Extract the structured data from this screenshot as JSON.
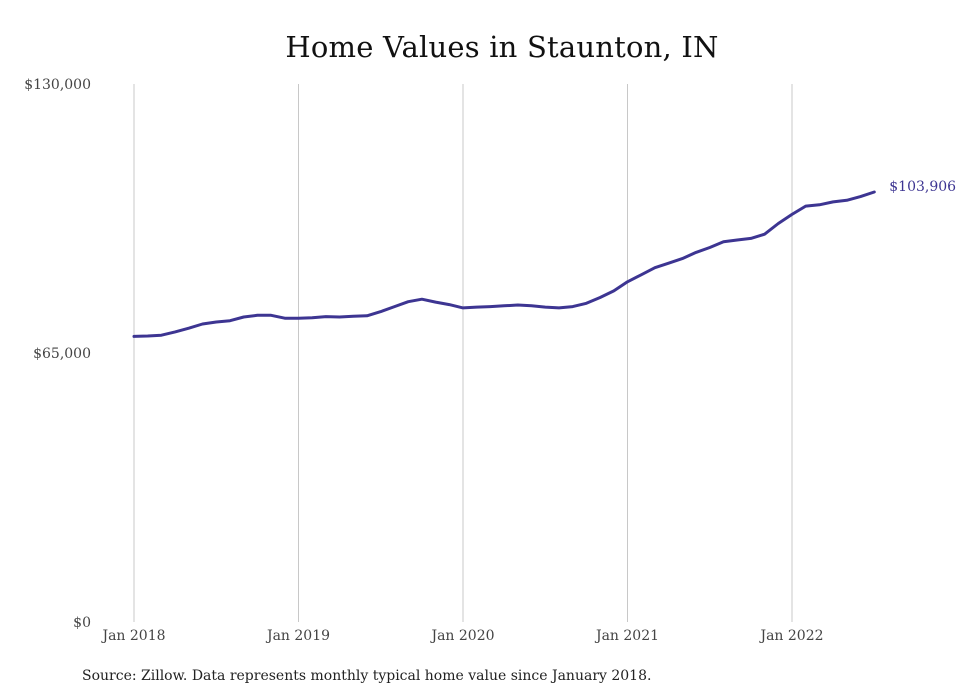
{
  "chart_data": {
    "type": "line",
    "title": "Home Values in Staunton, IN",
    "source": "Source: Zillow. Data represents monthly typical home value since January 2018.",
    "ylim": [
      0,
      130000
    ],
    "y_ticks": [
      {
        "value": 0,
        "label": "$0"
      },
      {
        "value": 65000,
        "label": "$65,000"
      },
      {
        "value": 130000,
        "label": "$130,000"
      }
    ],
    "x_ticks": [
      {
        "index": 0,
        "label": "Jan 2018"
      },
      {
        "index": 12,
        "label": "Jan 2019"
      },
      {
        "index": 24,
        "label": "Jan 2020"
      },
      {
        "index": 36,
        "label": "Jan 2021"
      },
      {
        "index": 48,
        "label": "Jan 2022"
      }
    ],
    "grid": "vertical",
    "line_color": "#3d3592",
    "grid_color": "#c8c8c8",
    "end_label": "$103,906",
    "series": [
      {
        "x": [
          "2018-01",
          "2018-02",
          "2018-03",
          "2018-04",
          "2018-05",
          "2018-06",
          "2018-07",
          "2018-08",
          "2018-09",
          "2018-10",
          "2018-11",
          "2018-12",
          "2019-01",
          "2019-02",
          "2019-03",
          "2019-04",
          "2019-05",
          "2019-06",
          "2019-07",
          "2019-08",
          "2019-09",
          "2019-10",
          "2019-11",
          "2019-12",
          "2020-01",
          "2020-02",
          "2020-03",
          "2020-04",
          "2020-05",
          "2020-06",
          "2020-07",
          "2020-08",
          "2020-09",
          "2020-10",
          "2020-11",
          "2020-12",
          "2021-01",
          "2021-02",
          "2021-03",
          "2021-04",
          "2021-05",
          "2021-06",
          "2021-07",
          "2021-08",
          "2021-09",
          "2021-10",
          "2021-11",
          "2021-12",
          "2022-01",
          "2022-02",
          "2022-03",
          "2022-04",
          "2022-05",
          "2022-06",
          "2022-07"
        ],
        "values": [
          69000,
          69100,
          69300,
          70100,
          71000,
          72000,
          72500,
          72800,
          73700,
          74100,
          74100,
          73400,
          73400,
          73500,
          73800,
          73700,
          73900,
          74000,
          75000,
          76200,
          77400,
          78000,
          77300,
          76700,
          75900,
          76100,
          76200,
          76400,
          76600,
          76400,
          76100,
          75900,
          76200,
          77000,
          78400,
          80000,
          82200,
          83900,
          85600,
          86700,
          87800,
          89300,
          90500,
          91900,
          92300,
          92700,
          93700,
          96300,
          98500,
          100500,
          100800,
          101500,
          101900,
          102800,
          103906
        ]
      }
    ]
  }
}
